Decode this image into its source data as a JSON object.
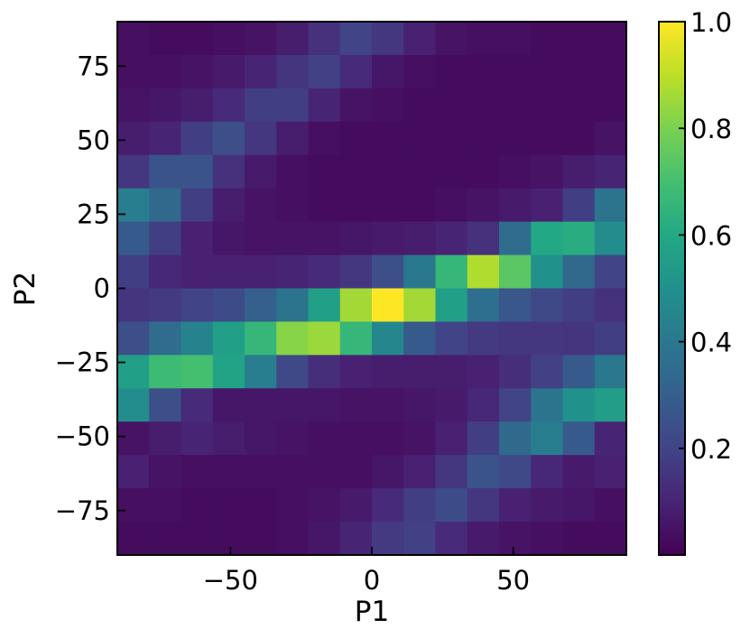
{
  "chart_data": {
    "type": "heatmap",
    "title": "",
    "xlabel": "P1",
    "ylabel": "P2",
    "xlim": [
      -90,
      90
    ],
    "ylim": [
      -90,
      90
    ],
    "bins": 16,
    "x_ticks": [
      -50,
      0,
      50
    ],
    "x_tick_labels": [
      "−50",
      "0",
      "50"
    ],
    "y_ticks": [
      -75,
      -50,
      -25,
      0,
      25,
      50,
      75
    ],
    "y_tick_labels": [
      "−75",
      "−50",
      "−25",
      "0",
      "25",
      "50",
      "75"
    ],
    "colormap": "viridis",
    "colorbar": {
      "range": [
        0.0,
        1.0
      ],
      "ticks": [
        0.2,
        0.4,
        0.6,
        0.8,
        1.0
      ],
      "tick_labels": [
        "0.2",
        "0.4",
        "0.6",
        "0.8",
        "1.0"
      ]
    },
    "grid": false,
    "values_row_order": "top-to-bottom (P2 from 90 down to -90)",
    "values": [
      [
        0.04,
        0.03,
        0.03,
        0.04,
        0.05,
        0.08,
        0.14,
        0.2,
        0.16,
        0.09,
        0.05,
        0.04,
        0.04,
        0.03,
        0.03,
        0.03
      ],
      [
        0.04,
        0.04,
        0.05,
        0.07,
        0.1,
        0.15,
        0.19,
        0.12,
        0.06,
        0.04,
        0.03,
        0.03,
        0.03,
        0.03,
        0.03,
        0.03
      ],
      [
        0.05,
        0.06,
        0.08,
        0.12,
        0.18,
        0.18,
        0.1,
        0.05,
        0.04,
        0.03,
        0.03,
        0.03,
        0.03,
        0.03,
        0.03,
        0.03
      ],
      [
        0.08,
        0.1,
        0.18,
        0.24,
        0.16,
        0.08,
        0.04,
        0.03,
        0.03,
        0.03,
        0.03,
        0.03,
        0.03,
        0.03,
        0.03,
        0.05
      ],
      [
        0.16,
        0.26,
        0.26,
        0.14,
        0.07,
        0.04,
        0.03,
        0.03,
        0.03,
        0.03,
        0.03,
        0.03,
        0.04,
        0.05,
        0.08,
        0.1
      ],
      [
        0.42,
        0.34,
        0.18,
        0.08,
        0.05,
        0.04,
        0.03,
        0.03,
        0.03,
        0.03,
        0.04,
        0.05,
        0.07,
        0.09,
        0.18,
        0.38
      ],
      [
        0.28,
        0.18,
        0.09,
        0.06,
        0.05,
        0.05,
        0.05,
        0.06,
        0.07,
        0.08,
        0.1,
        0.14,
        0.35,
        0.6,
        0.62,
        0.48
      ],
      [
        0.18,
        0.11,
        0.09,
        0.09,
        0.09,
        0.1,
        0.12,
        0.16,
        0.24,
        0.4,
        0.66,
        0.88,
        0.74,
        0.5,
        0.34,
        0.2
      ],
      [
        0.15,
        0.17,
        0.2,
        0.23,
        0.3,
        0.38,
        0.56,
        0.86,
        1.0,
        0.86,
        0.56,
        0.36,
        0.27,
        0.22,
        0.18,
        0.14
      ],
      [
        0.24,
        0.35,
        0.44,
        0.56,
        0.66,
        0.82,
        0.85,
        0.66,
        0.46,
        0.28,
        0.2,
        0.17,
        0.16,
        0.16,
        0.15,
        0.18
      ],
      [
        0.56,
        0.68,
        0.7,
        0.58,
        0.42,
        0.22,
        0.13,
        0.09,
        0.08,
        0.08,
        0.08,
        0.09,
        0.13,
        0.19,
        0.28,
        0.4
      ],
      [
        0.48,
        0.24,
        0.12,
        0.06,
        0.06,
        0.06,
        0.06,
        0.05,
        0.05,
        0.06,
        0.07,
        0.11,
        0.2,
        0.38,
        0.5,
        0.55
      ],
      [
        0.05,
        0.08,
        0.1,
        0.08,
        0.06,
        0.05,
        0.04,
        0.04,
        0.04,
        0.05,
        0.09,
        0.18,
        0.34,
        0.42,
        0.28,
        0.1
      ],
      [
        0.09,
        0.05,
        0.04,
        0.04,
        0.04,
        0.04,
        0.04,
        0.04,
        0.06,
        0.09,
        0.16,
        0.26,
        0.22,
        0.11,
        0.07,
        0.09
      ],
      [
        0.04,
        0.04,
        0.03,
        0.03,
        0.03,
        0.04,
        0.05,
        0.07,
        0.12,
        0.18,
        0.23,
        0.16,
        0.09,
        0.07,
        0.06,
        0.04
      ],
      [
        0.03,
        0.03,
        0.03,
        0.03,
        0.03,
        0.04,
        0.06,
        0.1,
        0.17,
        0.19,
        0.12,
        0.07,
        0.05,
        0.04,
        0.03,
        0.03
      ]
    ]
  }
}
